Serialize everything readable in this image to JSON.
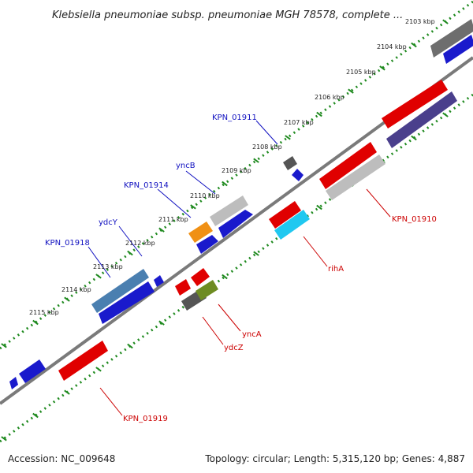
{
  "title": "Klebsiella pneumoniae subsp. pneumoniae MGH 78578, complete ...",
  "colors": {
    "backbone": "#7a7a7a",
    "tick_dots": "#1f8a1f",
    "forward_label": "#1010c0",
    "reverse_label": "#cc0000"
  },
  "ticks": [
    {
      "label": "2103 kbp"
    },
    {
      "label": "2104 kbp"
    },
    {
      "label": "2105 kbp"
    },
    {
      "label": "2106 kbp"
    },
    {
      "label": "2107 kbp"
    },
    {
      "label": "2108 kbp"
    },
    {
      "label": "2109 kbp"
    },
    {
      "label": "2110 kbp"
    },
    {
      "label": "2111 kbp"
    },
    {
      "label": "2112 kbp"
    },
    {
      "label": "2113 kbp"
    },
    {
      "label": "2114 kbp"
    },
    {
      "label": "2115 kbp"
    }
  ],
  "genes": [
    {
      "name": "KPN_01911",
      "strand": "forward"
    },
    {
      "name": "yncB",
      "strand": "forward"
    },
    {
      "name": "KPN_01914",
      "strand": "forward"
    },
    {
      "name": "ydcY",
      "strand": "forward"
    },
    {
      "name": "KPN_01918",
      "strand": "forward"
    },
    {
      "name": "KPN_01910",
      "strand": "reverse"
    },
    {
      "name": "rihA",
      "strand": "reverse"
    },
    {
      "name": "yncA",
      "strand": "reverse"
    },
    {
      "name": "ydcZ",
      "strand": "reverse"
    },
    {
      "name": "KPN_01919",
      "strand": "reverse"
    }
  ],
  "footer": {
    "accession": "Accession: NC_009648",
    "summary": "Topology: circular; Length: 5,315,120 bp; Genes: 4,887"
  }
}
